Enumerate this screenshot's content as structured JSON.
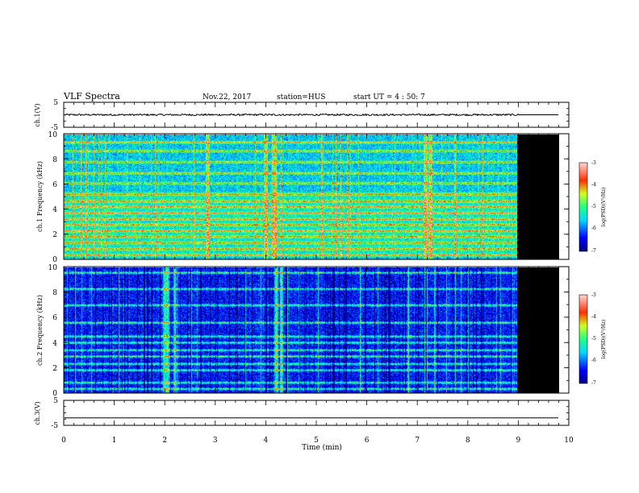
{
  "header": {
    "title": "VLF Spectra",
    "date": "Nov.22, 2017",
    "station": "station=HUS",
    "start_ut": "start UT = 4 : 50: 7"
  },
  "chart_data": {
    "type": "heatmap",
    "x_axis": {
      "label": "Time (min)",
      "range": [
        0,
        10
      ],
      "ticks": [
        "0",
        "1",
        "2",
        "3",
        "4",
        "5",
        "6",
        "7",
        "8",
        "9",
        "10"
      ],
      "data_end": 9.0
    },
    "panels": [
      {
        "id": "ch1-waveform",
        "type": "line",
        "ylabel": "ch.1(V)",
        "ylim": [
          -5,
          5
        ],
        "yticks": [
          "5",
          "-5"
        ],
        "trace_level": 0,
        "noise_amplitude": 0.35
      },
      {
        "id": "ch1-spectrogram",
        "type": "heatmap",
        "ylabel": "ch.1 Frequency (kHz)",
        "ylim": [
          0,
          10
        ],
        "yticks": [
          "0",
          "2",
          "4",
          "6",
          "8",
          "10"
        ],
        "background_level": -5.6,
        "no_data_color": "#000000",
        "tone_lines_khz": [
          0.3,
          0.8,
          1.3,
          1.8,
          2.25,
          2.75,
          3.2,
          3.7,
          4.2,
          4.65,
          5.2,
          6.1,
          6.9,
          7.8,
          8.7,
          9.4
        ],
        "bursts_min": [
          2.85,
          4.0,
          4.15,
          7.15,
          7.25
        ],
        "colorbar": {
          "label": "log(PSD)(V²/Hz)",
          "range": [
            -7,
            -3
          ],
          "ticks": [
            "-3",
            "-4",
            "-5",
            "-6",
            "-7"
          ]
        }
      },
      {
        "id": "ch2-spectrogram",
        "type": "heatmap",
        "ylabel": "ch.2 Frequency (kHz)",
        "ylim": [
          0,
          10
        ],
        "yticks": [
          "0",
          "2",
          "4",
          "6",
          "8",
          "10"
        ],
        "background_level": -6.4,
        "no_data_color": "#000000",
        "tone_lines_khz": [
          0.3,
          0.8,
          1.8,
          2.3,
          2.9,
          3.4,
          4.0,
          4.5,
          5.6,
          7.0,
          8.3,
          9.6
        ],
        "bursts_min": [
          2.0,
          2.05,
          2.2,
          4.2,
          4.3
        ],
        "colorbar": {
          "label": "log(PSD)(V²/Hz)",
          "range": [
            -7,
            -3
          ],
          "ticks": [
            "-3",
            "-4",
            "-5",
            "-6",
            "-7"
          ]
        }
      },
      {
        "id": "ch3-waveform",
        "type": "line",
        "ylabel": "ch.3(V)",
        "ylim": [
          -5,
          5
        ],
        "yticks": [
          "5",
          "-5"
        ],
        "trace_level": -2,
        "noise_amplitude": 0
      }
    ]
  }
}
